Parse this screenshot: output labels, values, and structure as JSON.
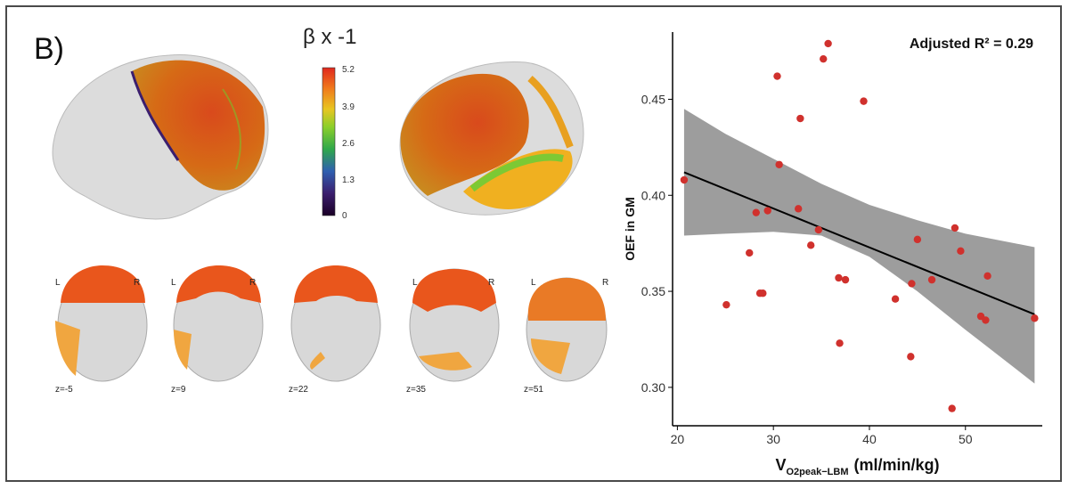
{
  "figure": {
    "panel_label": "B)",
    "colorbar": {
      "title": "β x -1",
      "ticks": [
        "5.2",
        "3.9",
        "2.6",
        "1.3",
        "0"
      ]
    },
    "axial_slices": [
      {
        "z": "z=-5",
        "left": "L",
        "right": "R"
      },
      {
        "z": "z=9",
        "left": "L",
        "right": "R"
      },
      {
        "z": "z=22",
        "left": "L",
        "right": "R"
      },
      {
        "z": "z=35",
        "left": "L",
        "right": "R"
      },
      {
        "z": "z=51",
        "left": "L",
        "right": "R"
      }
    ]
  },
  "chart_data": {
    "type": "scatter",
    "annotation": "Adjusted R² = 0.29",
    "xlabel_main": "V",
    "xlabel_sub": "O2peak−LBM",
    "xlabel_units": "(ml/min/kg)",
    "ylabel": "OEF in GM",
    "xlim": [
      19.5,
      58
    ],
    "ylim": [
      0.28,
      0.485
    ],
    "xticks": [
      20,
      30,
      40,
      50
    ],
    "yticks": [
      0.3,
      0.35,
      0.4,
      0.45
    ],
    "grid": false,
    "points": [
      {
        "x": 20.7,
        "y": 0.408
      },
      {
        "x": 25.1,
        "y": 0.343
      },
      {
        "x": 27.5,
        "y": 0.37
      },
      {
        "x": 28.2,
        "y": 0.391
      },
      {
        "x": 28.6,
        "y": 0.349
      },
      {
        "x": 28.9,
        "y": 0.349
      },
      {
        "x": 29.4,
        "y": 0.392
      },
      {
        "x": 30.4,
        "y": 0.462
      },
      {
        "x": 30.6,
        "y": 0.416
      },
      {
        "x": 32.6,
        "y": 0.393
      },
      {
        "x": 32.8,
        "y": 0.44
      },
      {
        "x": 33.9,
        "y": 0.374
      },
      {
        "x": 34.7,
        "y": 0.382
      },
      {
        "x": 35.2,
        "y": 0.471
      },
      {
        "x": 35.7,
        "y": 0.479
      },
      {
        "x": 36.8,
        "y": 0.357
      },
      {
        "x": 37.5,
        "y": 0.356
      },
      {
        "x": 36.9,
        "y": 0.323
      },
      {
        "x": 39.4,
        "y": 0.449
      },
      {
        "x": 42.7,
        "y": 0.346
      },
      {
        "x": 44.3,
        "y": 0.316
      },
      {
        "x": 44.4,
        "y": 0.354
      },
      {
        "x": 45.0,
        "y": 0.377
      },
      {
        "x": 46.5,
        "y": 0.356
      },
      {
        "x": 48.6,
        "y": 0.289
      },
      {
        "x": 48.9,
        "y": 0.383
      },
      {
        "x": 49.5,
        "y": 0.371
      },
      {
        "x": 51.6,
        "y": 0.337
      },
      {
        "x": 52.1,
        "y": 0.335
      },
      {
        "x": 52.3,
        "y": 0.358
      },
      {
        "x": 57.2,
        "y": 0.336
      }
    ],
    "fit": {
      "x": [
        20.7,
        57.2
      ],
      "y": [
        0.412,
        0.338
      ]
    },
    "ci_upper": [
      {
        "x": 20.7,
        "y": 0.445
      },
      {
        "x": 25,
        "y": 0.432
      },
      {
        "x": 30,
        "y": 0.419
      },
      {
        "x": 35,
        "y": 0.406
      },
      {
        "x": 40,
        "y": 0.395
      },
      {
        "x": 45,
        "y": 0.387
      },
      {
        "x": 50,
        "y": 0.38
      },
      {
        "x": 57.2,
        "y": 0.373
      }
    ],
    "ci_lower": [
      {
        "x": 20.7,
        "y": 0.379
      },
      {
        "x": 25,
        "y": 0.38
      },
      {
        "x": 30,
        "y": 0.381
      },
      {
        "x": 35,
        "y": 0.379
      },
      {
        "x": 40,
        "y": 0.368
      },
      {
        "x": 45,
        "y": 0.35
      },
      {
        "x": 50,
        "y": 0.33
      },
      {
        "x": 57.2,
        "y": 0.302
      }
    ],
    "colors": {
      "points": "#d0312d",
      "fit": "#000000",
      "band": "#8c8c8c"
    }
  }
}
